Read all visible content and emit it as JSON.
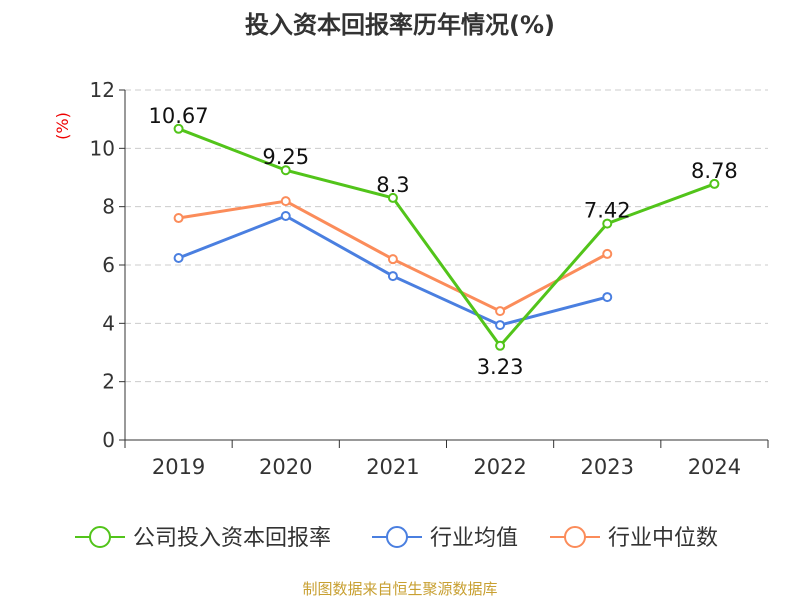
{
  "chart_data": {
    "type": "line",
    "title": "投入资本回报率历年情况(%)",
    "ylabel": "(%)",
    "categories": [
      "2019",
      "2020",
      "2021",
      "2022",
      "2023",
      "2024"
    ],
    "ylim": [
      0,
      12
    ],
    "yticks": [
      0,
      2,
      4,
      6,
      8,
      10,
      12
    ],
    "grid": true,
    "legend_position": "bottom",
    "series": [
      {
        "name": "公司投入资本回报率",
        "color": "#52c41a",
        "values": [
          10.67,
          9.25,
          8.3,
          3.23,
          7.42,
          8.78
        ],
        "labels": [
          "10.67",
          "9.25",
          "8.3",
          "3.23",
          "7.42",
          "8.78"
        ]
      },
      {
        "name": "行业均值",
        "color": "#4a7fe0",
        "values": [
          6.24,
          7.68,
          5.62,
          3.94,
          4.9,
          null
        ]
      },
      {
        "name": "行业中位数",
        "color": "#fb8c5a",
        "values": [
          7.61,
          8.19,
          6.2,
          4.42,
          6.38,
          null
        ]
      }
    ]
  },
  "source": "制图数据来自恒生聚源数据库"
}
